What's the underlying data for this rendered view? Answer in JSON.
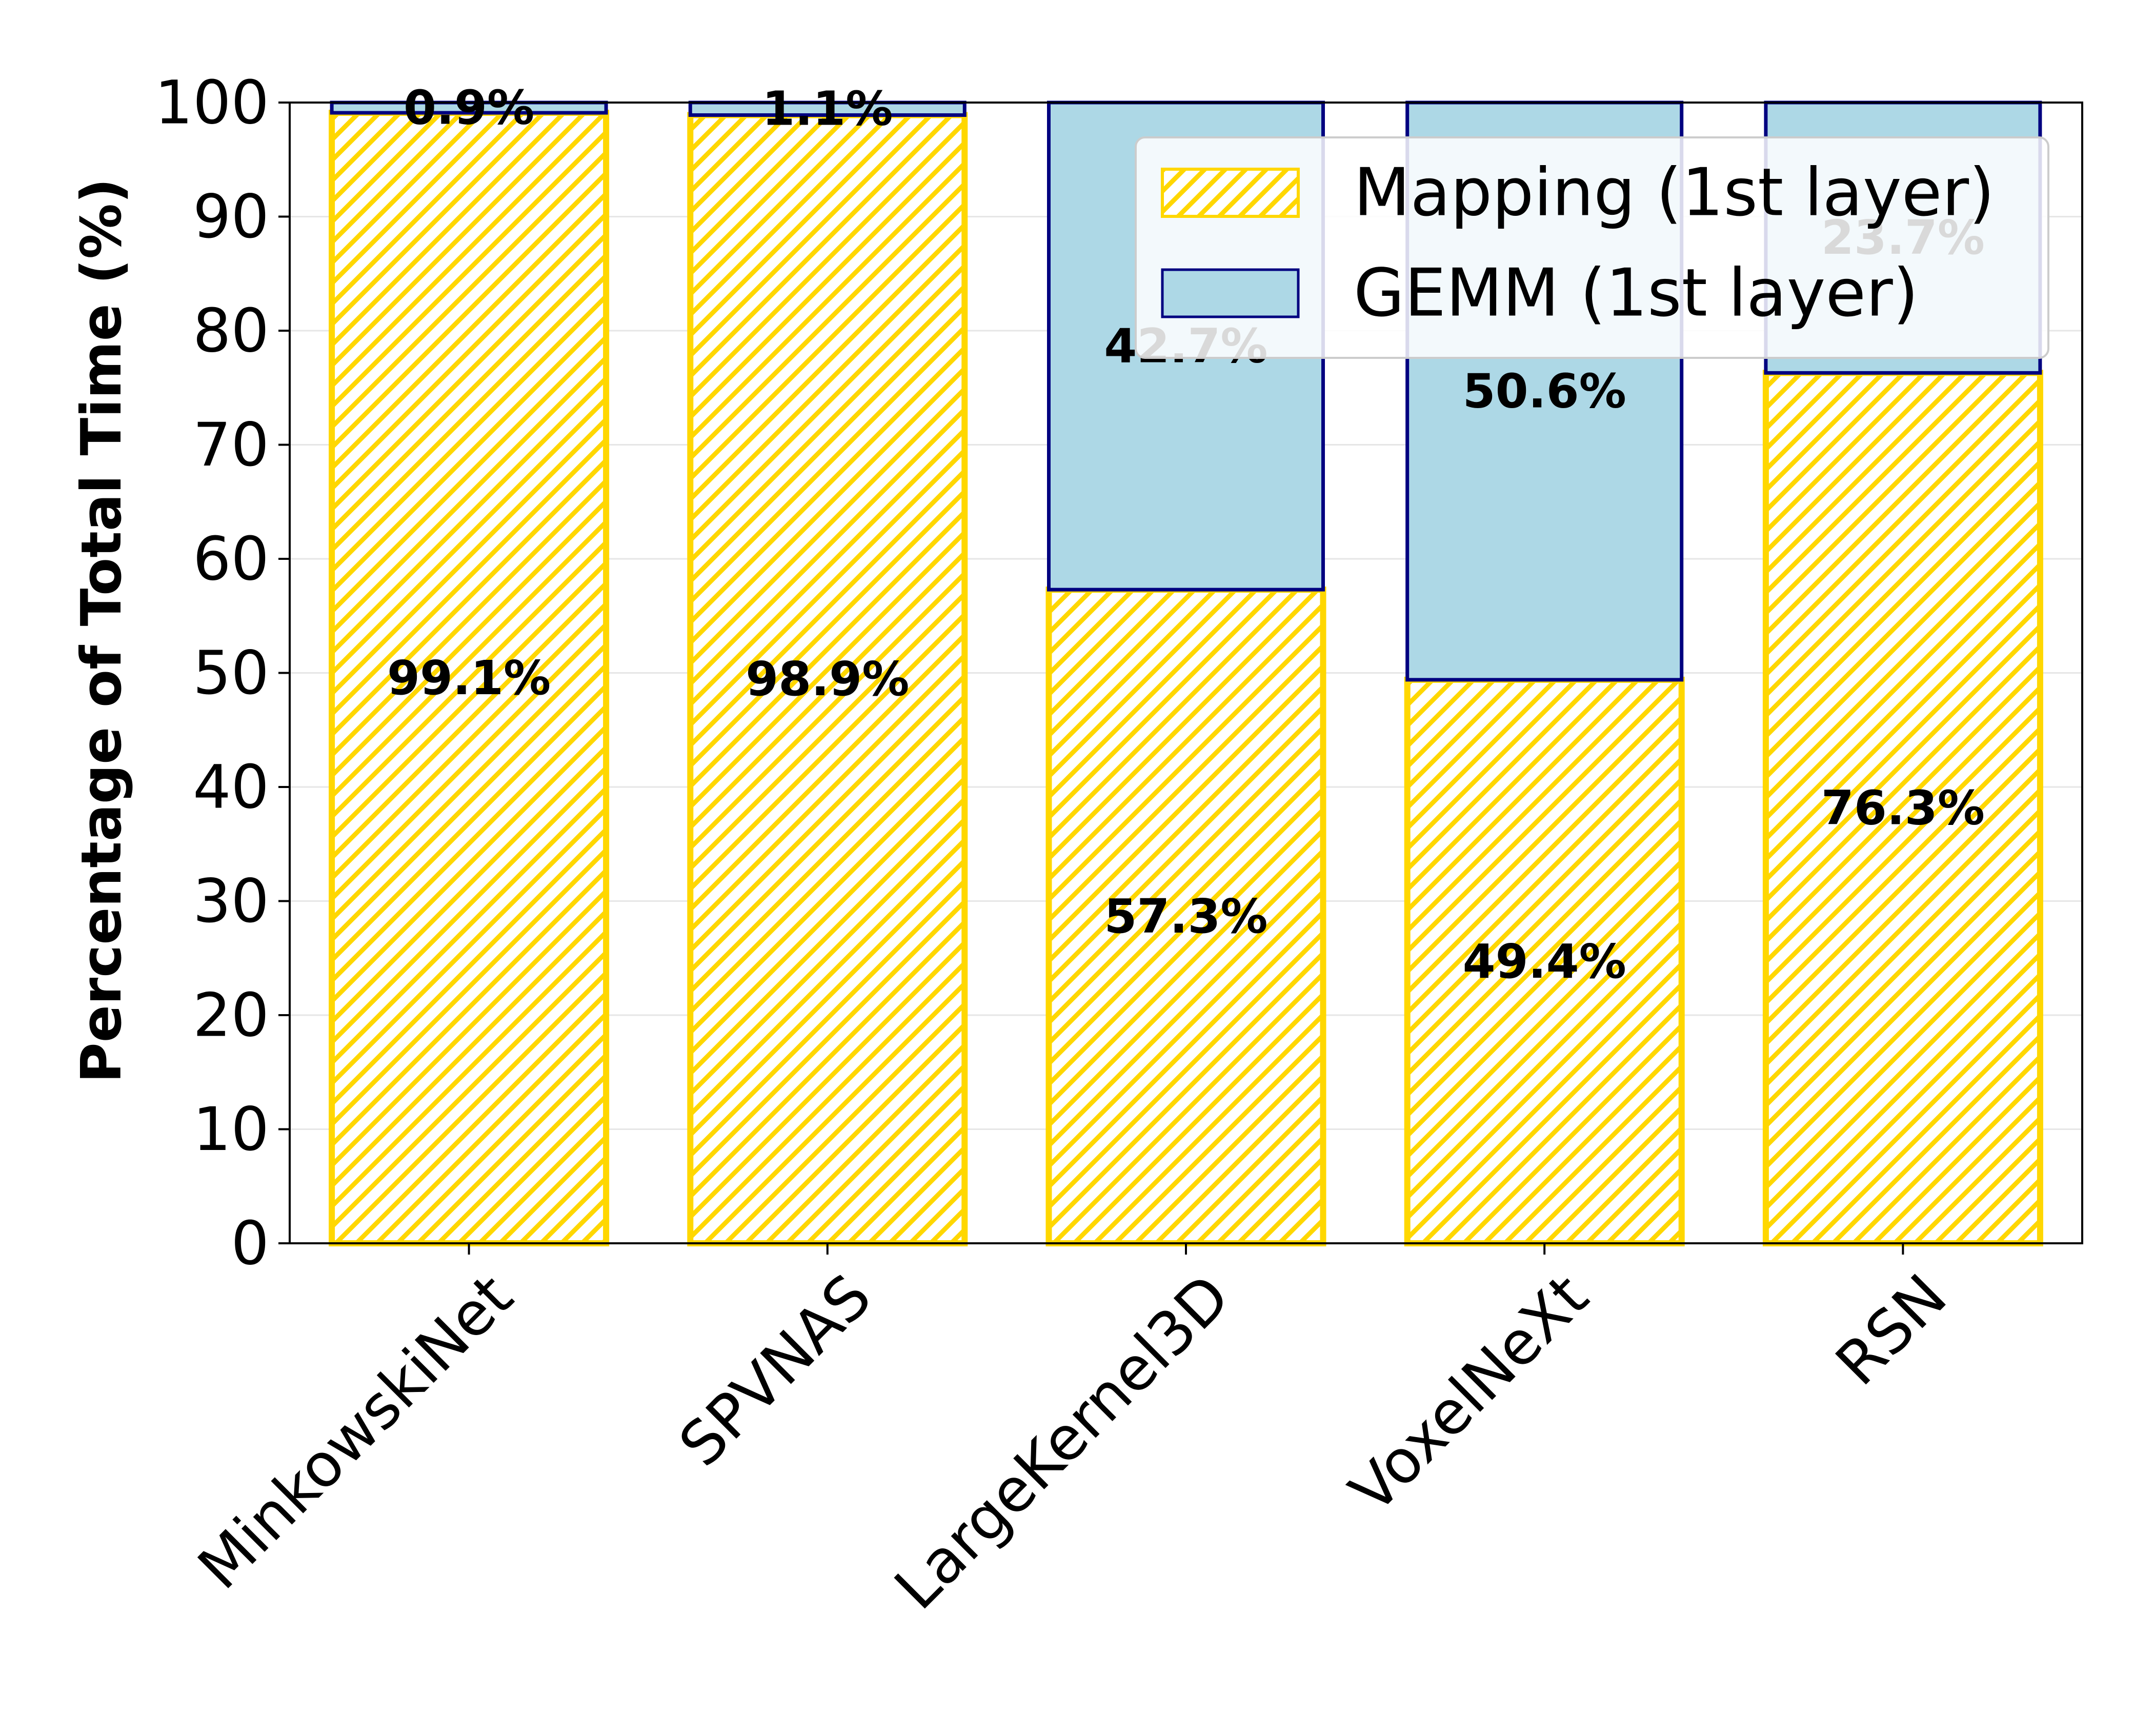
{
  "chart_data": {
    "type": "bar",
    "stacked": true,
    "categories": [
      "MinkowskiNet",
      "SPVNAS",
      "LargeKernel3D",
      "VoxelNeXt",
      "RSN"
    ],
    "series": [
      {
        "name": "Mapping (1st layer)",
        "values": [
          99.1,
          98.9,
          57.3,
          49.4,
          76.3
        ],
        "labels": [
          "99.1%",
          "98.9%",
          "57.3%",
          "49.4%",
          "76.3%"
        ]
      },
      {
        "name": "GEMM (1st layer)",
        "values": [
          0.9,
          1.1,
          42.7,
          50.6,
          23.7
        ],
        "labels": [
          "0.9%",
          "1.1%",
          "42.7%",
          "50.6%",
          "23.7%"
        ]
      }
    ],
    "ylabel": "Percentage of Total Time (%)",
    "xlabel": "",
    "ylim": [
      0,
      100
    ],
    "yticks": [
      0,
      10,
      20,
      30,
      40,
      50,
      60,
      70,
      80,
      90,
      100
    ],
    "grid": "horizontal",
    "legend_position": "top-right",
    "colors": {
      "mapping_fill": "#ffffff",
      "mapping_hatch": "#ffd700",
      "mapping_edge": "#ffd700",
      "gemm_fill": "#add8e6",
      "gemm_edge": "#000080"
    }
  }
}
